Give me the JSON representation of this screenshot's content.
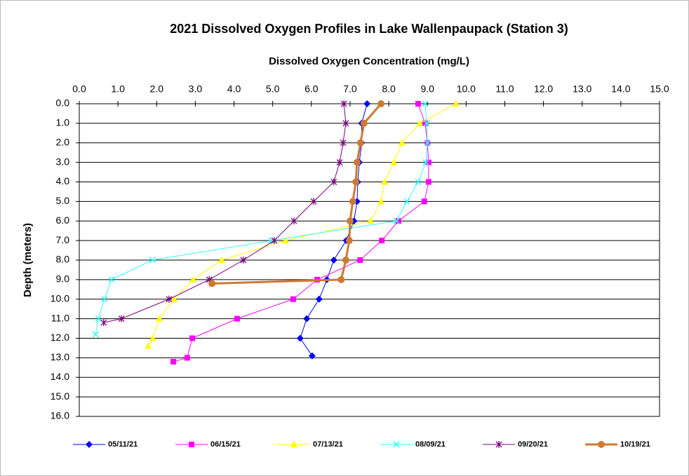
{
  "chart_data": {
    "type": "line",
    "title": "2021 Dissolved Oxygen Profiles in Lake Wallenpaupack (Station 3)",
    "x_label": "Dissolved Oxygen Concentration (mg/L)",
    "y_label": "Depth (meters)",
    "xlim": [
      0,
      15
    ],
    "ylim": [
      0,
      16
    ],
    "y_inverted": true,
    "grid": "y",
    "xticks": [
      {
        "value": 0,
        "label": "0.0"
      },
      {
        "value": 1,
        "label": "1.0"
      },
      {
        "value": 2,
        "label": "2.0"
      },
      {
        "value": 3,
        "label": "3.0"
      },
      {
        "value": 4,
        "label": "4.0"
      },
      {
        "value": 5,
        "label": "5.0"
      },
      {
        "value": 6,
        "label": "6.0"
      },
      {
        "value": 7,
        "label": "7.0"
      },
      {
        "value": 8,
        "label": "8.0"
      },
      {
        "value": 9,
        "label": "9.0"
      },
      {
        "value": 10,
        "label": "10.0"
      },
      {
        "value": 11,
        "label": "11.0"
      },
      {
        "value": 12,
        "label": "12.0"
      },
      {
        "value": 13,
        "label": "13.0"
      },
      {
        "value": 14,
        "label": "14.0"
      },
      {
        "value": 15,
        "label": "15.0"
      }
    ],
    "yticks": [
      {
        "value": 0,
        "label": "0.0"
      },
      {
        "value": 1,
        "label": "1.0"
      },
      {
        "value": 2,
        "label": "2.0"
      },
      {
        "value": 3,
        "label": "3.0"
      },
      {
        "value": 4,
        "label": "4.0"
      },
      {
        "value": 5,
        "label": "5.0"
      },
      {
        "value": 6,
        "label": "6.0"
      },
      {
        "value": 7,
        "label": "7.0"
      },
      {
        "value": 8,
        "label": "8.0"
      },
      {
        "value": 9,
        "label": "9.0"
      },
      {
        "value": 10,
        "label": "10.0"
      },
      {
        "value": 11,
        "label": "11.0"
      },
      {
        "value": 12,
        "label": "12.0"
      },
      {
        "value": 13,
        "label": "13.0"
      },
      {
        "value": 14,
        "label": "14.0"
      },
      {
        "value": 15,
        "label": "15.0"
      },
      {
        "value": 16,
        "label": "16.0"
      }
    ],
    "series": [
      {
        "name": "05/11/21",
        "color": "#0000ff",
        "marker": "diamond",
        "width": 1,
        "x": [
          7.44,
          7.3,
          7.3,
          7.24,
          7.2,
          7.18,
          7.1,
          6.9,
          6.58,
          6.4,
          6.2,
          5.88,
          5.71,
          6.02
        ],
        "values": [
          0,
          1,
          2,
          3,
          4,
          5,
          6,
          7,
          8,
          9,
          10,
          11,
          12,
          12.9
        ]
      },
      {
        "name": "06/15/21",
        "color": "#ff00ff",
        "marker": "square",
        "width": 1,
        "x": [
          8.76,
          8.94,
          9.0,
          9.03,
          9.03,
          8.92,
          8.25,
          7.82,
          7.26,
          6.15,
          5.53,
          4.08,
          2.92,
          2.79,
          2.43
        ],
        "values": [
          0,
          1,
          2,
          3,
          4,
          5,
          6,
          7,
          8,
          9,
          10,
          11,
          12,
          13,
          13.2
        ]
      },
      {
        "name": "07/13/21",
        "color": "#ffff00",
        "marker": "triangle",
        "width": 1,
        "x": [
          9.74,
          8.8,
          8.34,
          8.13,
          7.89,
          7.8,
          7.53,
          5.33,
          3.68,
          2.94,
          2.45,
          2.07,
          1.9,
          1.78
        ],
        "values": [
          0,
          1,
          2,
          3,
          4,
          5,
          6,
          7,
          8,
          9,
          10,
          11,
          12,
          12.4
        ]
      },
      {
        "name": "08/09/21",
        "color": "#33ffff",
        "marker": "x",
        "width": 1,
        "x": [
          8.94,
          8.98,
          9.0,
          8.96,
          8.76,
          8.47,
          8.2,
          4.97,
          1.89,
          0.83,
          0.65,
          0.49,
          0.42
        ],
        "values": [
          0,
          1,
          2,
          3,
          4,
          5,
          6,
          7,
          8,
          9,
          10,
          11,
          11.8
        ]
      },
      {
        "name": "09/20/21",
        "color": "#800080",
        "marker": "star",
        "width": 1,
        "x": [
          6.84,
          6.89,
          6.82,
          6.73,
          6.58,
          6.06,
          5.55,
          5.04,
          4.24,
          3.36,
          2.32,
          1.09,
          0.63
        ],
        "values": [
          0,
          1,
          2,
          3,
          4,
          5,
          6,
          7,
          8,
          9,
          10,
          11,
          11.2
        ]
      },
      {
        "name": "10/19/21",
        "color": "#cc7a33",
        "marker": "circle",
        "width": 3,
        "x": [
          7.8,
          7.36,
          7.27,
          7.18,
          7.15,
          7.07,
          7.0,
          6.98,
          6.89,
          6.77,
          3.43
        ],
        "values": [
          0,
          1,
          2,
          3,
          4,
          5,
          6,
          7,
          8,
          9,
          9.2
        ]
      }
    ]
  }
}
